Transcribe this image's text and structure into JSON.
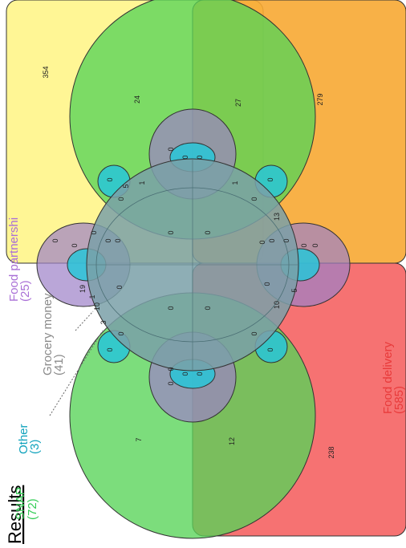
{
  "title": "Results",
  "sets": [
    {
      "key": "snap",
      "name": "SNAP",
      "count": "(72)",
      "color": "#33cc55"
    },
    {
      "key": "other",
      "name": "Other",
      "count": "(3)",
      "color": "#11a3bd"
    },
    {
      "key": "grocery",
      "name": "Grocery money",
      "count": "(41)",
      "color": "#8a8a8a"
    },
    {
      "key": "partner",
      "name": "Food partnershi",
      "count": "(25)",
      "color": "#a96fd6"
    },
    {
      "key": "delivery",
      "name": "Food delivery",
      "count": "(585)",
      "color": "#e83a3a"
    }
  ],
  "regions": {
    "yellow_only": "354",
    "green_upper": "24",
    "green_orange": "27",
    "orange_only": "279",
    "green_lower": "7",
    "green_red": "12",
    "red_only": "238",
    "magenta_small": "5",
    "purple_top": "19",
    "grey_a": "1",
    "grey_b": "10",
    "grey_c": "10",
    "grey_d": "13",
    "cyan_a": "3",
    "grey_e": "5",
    "grey_f": "1",
    "grey_g": "1",
    "zero": "0"
  }
}
